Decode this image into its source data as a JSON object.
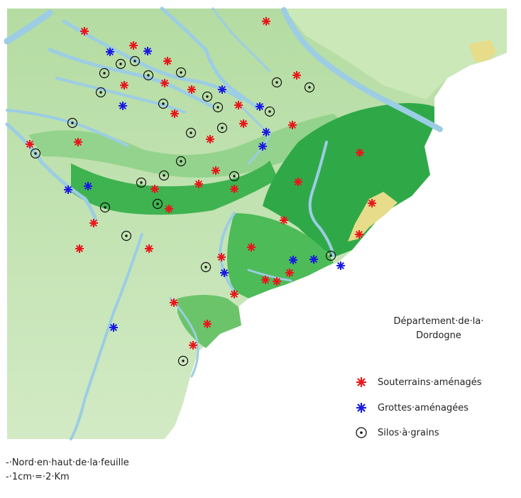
{
  "legend": {
    "title_line1": "Département·de·la·",
    "title_line2": "Dordogne",
    "items": [
      {
        "label": "Souterrains·aménagés",
        "symbol": "red-star-icon",
        "color": "#e8161a"
      },
      {
        "label": "Grottes·aménagées",
        "symbol": "blue-star-icon",
        "color": "#1a1ae0"
      },
      {
        "label": "Silos·à·grains",
        "symbol": "circled-dot-icon",
        "color": "#111111"
      }
    ]
  },
  "notes": [
    "-·Nord·en·haut·de·la·feuille",
    "-·1cm·=·2·Km"
  ],
  "colors": {
    "land_light": "#c3e3b0",
    "land_mid": "#8ccf82",
    "land_dark": "#2fae4a",
    "river": "#a8d4e6",
    "sand": "#e6dc8a",
    "souterrain": "#e8161a",
    "grotte": "#1a1ae0"
  }
}
